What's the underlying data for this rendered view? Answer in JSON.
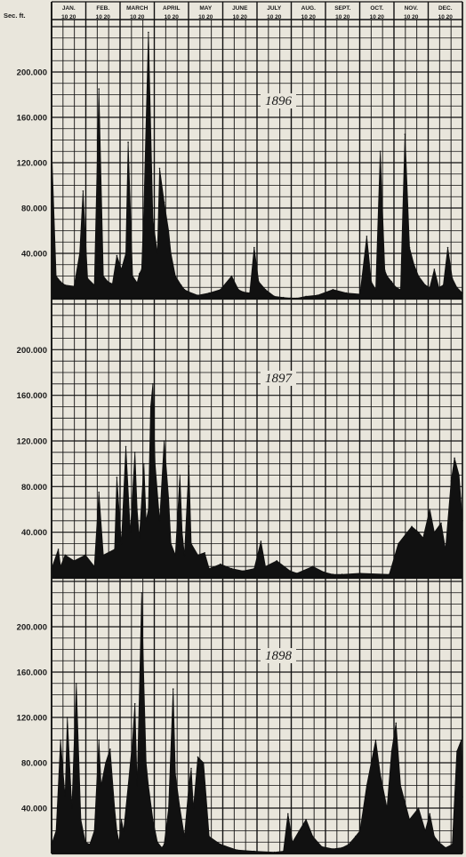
{
  "chart_data": {
    "type": "area",
    "y_unit_label": "Sec. ft.",
    "months": [
      "JAN.",
      "FEB.",
      "MARCH",
      "APRIL",
      "MAY",
      "JUNE",
      "JULY",
      "AUG.",
      "SEPT.",
      "OCT.",
      "NOV.",
      "DEC."
    ],
    "month_day_ticks": "10 20",
    "ylim": [
      0,
      240000
    ],
    "grid": true,
    "colors": {
      "fill": "#111111",
      "grid": "#111111",
      "paper": "#e9e6dc"
    },
    "panels": [
      {
        "year": "1896",
        "yticks": [
          "40.000",
          "80.000",
          "120.000",
          "160.000",
          "200.000"
        ],
        "ytick_values": [
          40000,
          80000,
          120000,
          160000,
          200000
        ],
        "x": [
          0,
          4,
          8,
          12,
          20,
          25,
          28,
          32,
          38,
          42,
          46,
          50,
          54,
          58,
          62,
          66,
          68,
          72,
          76,
          78,
          80,
          82,
          86,
          90,
          94,
          96,
          100,
          104,
          106,
          110,
          115,
          118,
          122,
          130,
          140,
          150,
          160,
          166,
          170,
          176,
          180,
          184,
          190,
          198,
          206,
          212,
          218,
          226,
          236,
          250,
          262,
          274,
          280,
          284,
          288,
          292,
          296,
          298,
          302,
          306,
          310,
          314,
          318,
          322,
          326,
          332,
          336,
          340,
          344,
          348,
          352,
          356,
          360,
          365
        ],
        "y": [
          135000,
          20000,
          15000,
          12000,
          11000,
          40000,
          95000,
          18000,
          12000,
          185000,
          20000,
          15000,
          13000,
          38000,
          26000,
          40000,
          138000,
          20000,
          14000,
          22000,
          26000,
          80000,
          235000,
          70000,
          40000,
          115000,
          85000,
          60000,
          40000,
          20000,
          12000,
          8000,
          6000,
          3000,
          5000,
          8000,
          20000,
          8000,
          6000,
          5000,
          45000,
          15000,
          8000,
          2000,
          1000,
          500,
          400,
          2000,
          3000,
          8000,
          5000,
          4000,
          55000,
          15000,
          8000,
          130000,
          25000,
          20000,
          15000,
          10000,
          8000,
          145000,
          45000,
          30000,
          20000,
          12000,
          10000,
          26000,
          10000,
          12000,
          45000,
          18000,
          10000,
          5000
        ]
      },
      {
        "year": "1897",
        "yticks": [
          "40.000",
          "80.000",
          "120.000",
          "160.000",
          "200.000"
        ],
        "ytick_values": [
          40000,
          80000,
          120000,
          160000,
          200000
        ],
        "x": [
          0,
          6,
          8,
          12,
          20,
          30,
          38,
          42,
          46,
          56,
          58,
          62,
          66,
          70,
          74,
          76,
          78,
          82,
          84,
          86,
          88,
          90,
          92,
          96,
          100,
          104,
          106,
          110,
          114,
          116,
          118,
          122,
          124,
          130,
          136,
          140,
          150,
          160,
          170,
          180,
          186,
          190,
          200,
          212,
          218,
          232,
          242,
          250,
          258,
          274,
          300,
          308,
          320,
          326,
          330,
          336,
          340,
          346,
          350,
          355,
          358,
          362,
          365
        ],
        "y": [
          8000,
          25000,
          10000,
          20000,
          15000,
          20000,
          10000,
          75000,
          20000,
          25000,
          88000,
          30000,
          115000,
          40000,
          110000,
          60000,
          35000,
          100000,
          50000,
          60000,
          150000,
          170000,
          100000,
          50000,
          120000,
          70000,
          30000,
          20000,
          90000,
          40000,
          20000,
          98000,
          30000,
          20000,
          22000,
          8000,
          12000,
          8000,
          6000,
          8000,
          32000,
          10000,
          15000,
          6000,
          4000,
          10000,
          5000,
          3000,
          3000,
          4000,
          3000,
          30000,
          45000,
          40000,
          35000,
          60000,
          40000,
          48000,
          25000,
          85000,
          105000,
          90000,
          50000
        ]
      },
      {
        "year": "1898",
        "yticks": [
          "40.000",
          "80.000",
          "120.000",
          "160.000",
          "200.000"
        ],
        "ytick_values": [
          40000,
          80000,
          120000,
          160000,
          200000
        ],
        "x": [
          0,
          4,
          8,
          12,
          14,
          18,
          22,
          26,
          30,
          34,
          38,
          42,
          44,
          48,
          52,
          56,
          58,
          60,
          62,
          64,
          68,
          72,
          74,
          76,
          78,
          80,
          82,
          84,
          86,
          90,
          94,
          98,
          100,
          104,
          108,
          110,
          114,
          118,
          122,
          124,
          126,
          130,
          135,
          140,
          150,
          165,
          180,
          198,
          206,
          210,
          214,
          220,
          226,
          232,
          240,
          250,
          258,
          264,
          270,
          274,
          280,
          288,
          292,
          298,
          302,
          306,
          310,
          318,
          326,
          332,
          336,
          340,
          344,
          350,
          356,
          360,
          364,
          365
        ],
        "y": [
          8000,
          20000,
          100000,
          50000,
          120000,
          40000,
          150000,
          30000,
          10000,
          8000,
          20000,
          100000,
          60000,
          80000,
          92000,
          40000,
          20000,
          10000,
          30000,
          20000,
          60000,
          100000,
          132000,
          60000,
          140000,
          230000,
          150000,
          80000,
          60000,
          30000,
          10000,
          5000,
          8000,
          40000,
          145000,
          70000,
          40000,
          15000,
          60000,
          75000,
          40000,
          85000,
          80000,
          15000,
          8000,
          3000,
          2000,
          1000,
          2000,
          35000,
          10000,
          20000,
          30000,
          15000,
          6000,
          4000,
          5000,
          8000,
          15000,
          20000,
          60000,
          100000,
          70000,
          40000,
          90000,
          115000,
          60000,
          30000,
          40000,
          20000,
          35000,
          15000,
          10000,
          5000,
          8000,
          90000,
          100000,
          50000
        ]
      }
    ]
  }
}
